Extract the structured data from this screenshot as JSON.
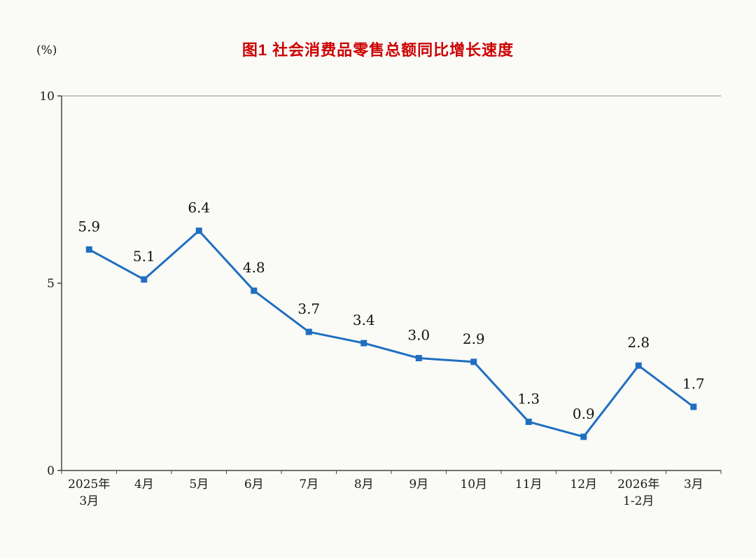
{
  "page": {
    "title": "图1 社会消费品零售总额同比增长速度",
    "y_axis_unit": "(%)"
  },
  "chart_data": {
    "type": "line",
    "title": "图1 社会消费品零售总额同比增长速度",
    "ylabel": "(%)",
    "xlabel": "",
    "categories": [
      "2025年\n3月",
      "4月",
      "5月",
      "6月",
      "7月",
      "8月",
      "9月",
      "10月",
      "11月",
      "12月",
      "2026年\n1-2月",
      "3月"
    ],
    "values": [
      5.9,
      5.1,
      6.4,
      4.8,
      3.7,
      3.4,
      3.0,
      2.9,
      1.3,
      0.9,
      2.8,
      1.7
    ],
    "labels": [
      "5.9",
      "5.1",
      "6.4",
      "4.8",
      "3.7",
      "3.4",
      "3.0",
      "2.9",
      "1.3",
      "0.9",
      "2.8",
      "1.7"
    ],
    "series_name": "社会消费品零售总额同比增长速度",
    "ylim": [
      0,
      10
    ],
    "yticks": [
      0,
      5,
      10
    ],
    "grid": false,
    "legend": "none",
    "line_color": "#1f6fc0",
    "marker": "square",
    "title_color": "#cc0000",
    "text_color": "#1a1a1a"
  }
}
